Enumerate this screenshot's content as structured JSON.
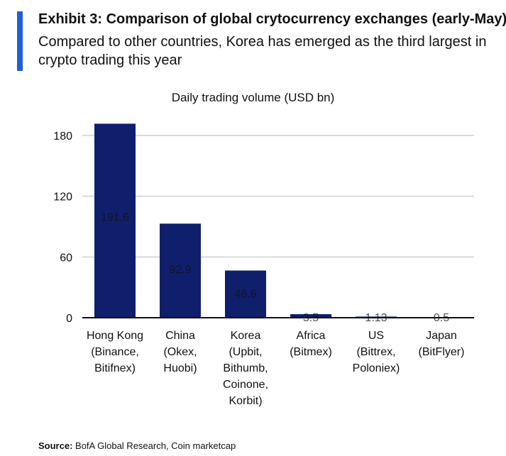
{
  "header": {
    "title": "Exhibit 3: Comparison of global crytocurrency exchanges (early-May)",
    "subtitle": "Compared to other countries, Korea has emerged as the third largest in crypto trading this year"
  },
  "colors": {
    "accent": "#1f5fd6",
    "bar": "#0f1f6b",
    "grid": "#cfcfcf",
    "axis": "#111111"
  },
  "chart_data": {
    "type": "bar",
    "title": "Daily trading volume (USD bn)",
    "xlabel": "",
    "ylabel": "",
    "ylim": [
      0,
      190
    ],
    "yticks": [
      0,
      60,
      120,
      180
    ],
    "grid": true,
    "categories": [
      [
        "Hong Kong",
        "(Binance,",
        "Bitifnex)"
      ],
      [
        "China",
        "(Okex,",
        "Huobi)"
      ],
      [
        "Korea",
        "(Upbit,",
        "Bithumb,",
        "Coinone,",
        "Korbit)"
      ],
      [
        "Africa",
        "(Bitmex)"
      ],
      [
        "US",
        "(Bittrex,",
        "Poloniex)"
      ],
      [
        "Japan",
        "(BitFlyer)"
      ]
    ],
    "values": [
      191.6,
      92.9,
      46.6,
      3.5,
      1.13,
      0.5
    ],
    "value_labels": [
      "191.6",
      "92.9",
      "46.6",
      "3.5",
      "1.13",
      "0.5"
    ]
  },
  "footer": {
    "source_label": "Source:",
    "source_text": "BofA Global Research, Coin marketcap"
  }
}
